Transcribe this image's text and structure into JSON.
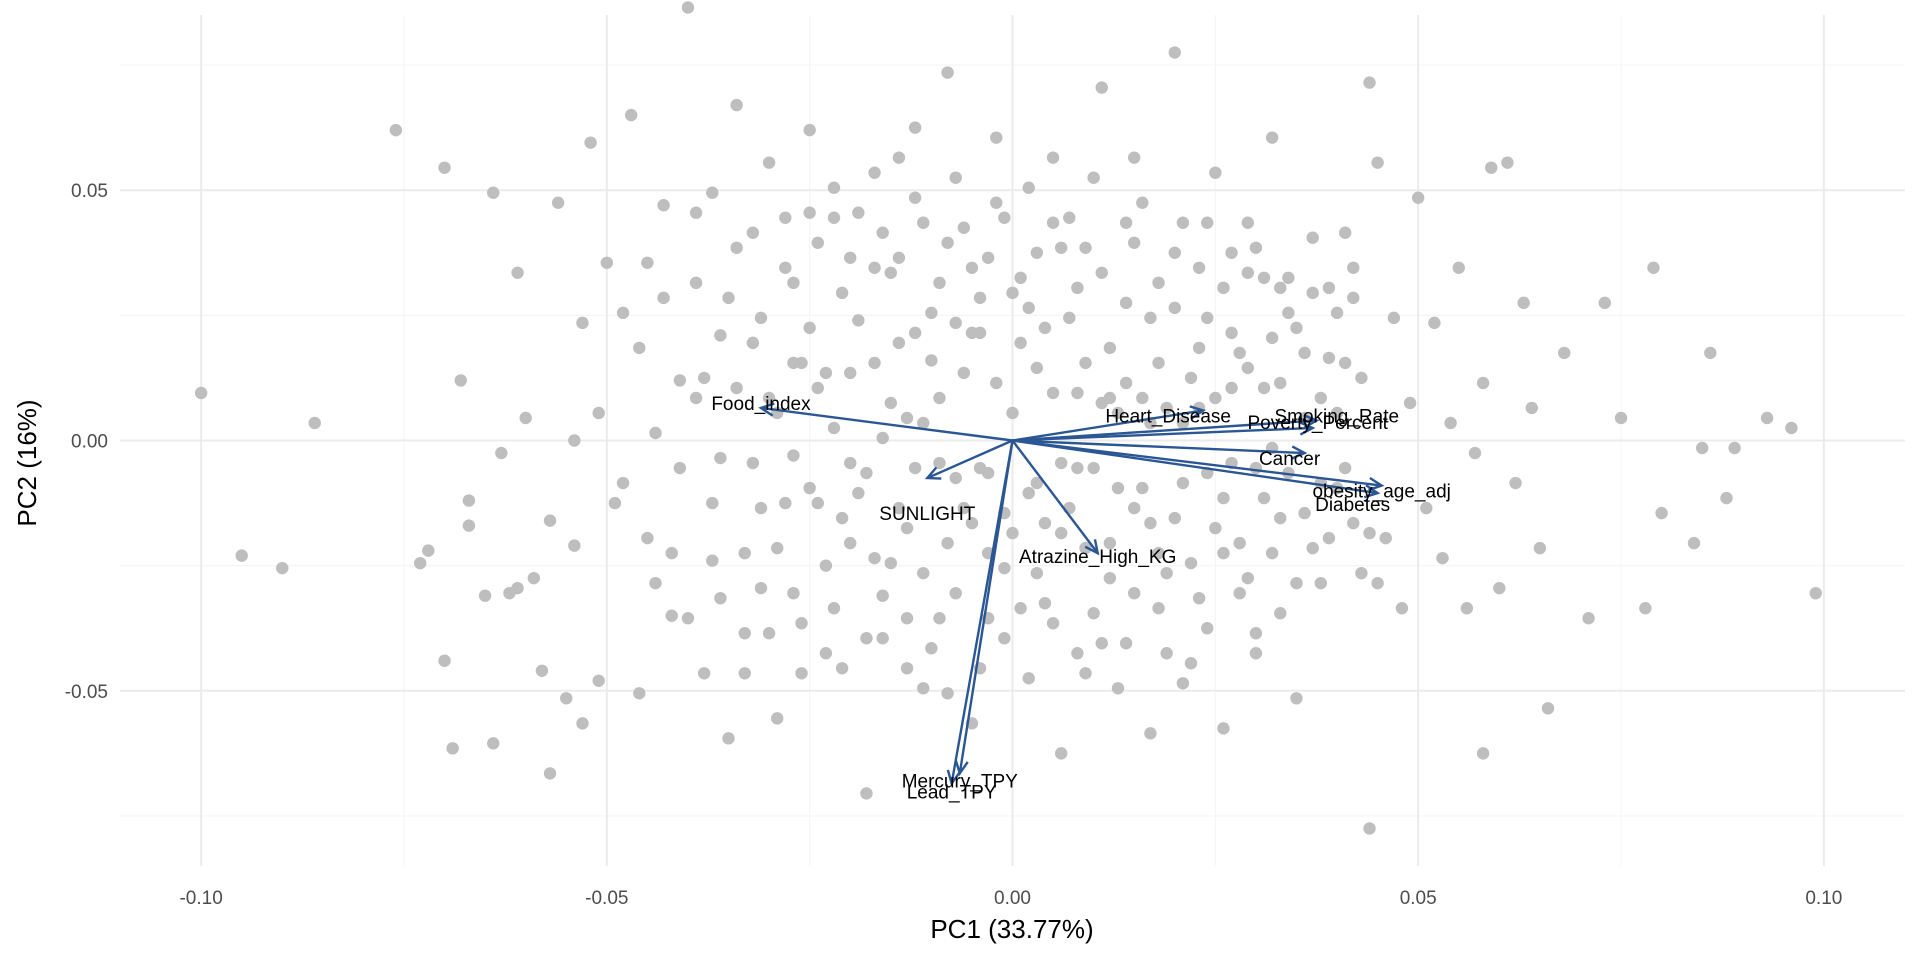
{
  "chart_data": {
    "type": "scatter",
    "subtype": "pca-biplot",
    "xlabel": "PC1 (33.77%)",
    "ylabel": "PC2 (16%)",
    "xlim": [
      -0.11,
      0.11
    ],
    "ylim": [
      -0.085,
      0.085
    ],
    "x_ticks": [
      -0.1,
      -0.05,
      0.0,
      0.05,
      0.1
    ],
    "x_tick_labels": [
      "-0.10",
      "-0.05",
      "0.00",
      "0.05",
      "0.10"
    ],
    "y_ticks": [
      -0.05,
      0.0,
      0.05
    ],
    "y_tick_labels": [
      "-0.05",
      "0.00",
      "0.05"
    ],
    "grid": true,
    "legend": "none",
    "colors": {
      "points": "#bebebe",
      "arrows": "#2a5694",
      "grid_major": "#ebebeb",
      "grid_minor": "#f5f5f5"
    },
    "loadings": [
      {
        "name": "Food_index",
        "x": -0.031,
        "y": 0.0065
      },
      {
        "name": "SUNLIGHT",
        "x": -0.0105,
        "y": -0.0075
      },
      {
        "name": "Heart_Disease",
        "x": 0.0235,
        "y": 0.006
      },
      {
        "name": "Smoking_Rate",
        "x": 0.0375,
        "y": 0.004
      },
      {
        "name": "Poverty_Percent",
        "x": 0.037,
        "y": 0.0025
      },
      {
        "name": "Cancer",
        "x": 0.036,
        "y": -0.0025
      },
      {
        "name": "obesity_age_adj",
        "x": 0.0455,
        "y": -0.009
      },
      {
        "name": "Diabetes",
        "x": 0.045,
        "y": -0.0105
      },
      {
        "name": "Atrazine_High_KG",
        "x": 0.0105,
        "y": -0.0225
      },
      {
        "name": "Mercury_TPY",
        "x": -0.0065,
        "y": -0.0665
      },
      {
        "name": "Lead_TPY",
        "x": -0.0075,
        "y": -0.0685
      }
    ],
    "points": [
      [
        -0.1,
        0.0095
      ],
      [
        -0.095,
        -0.023
      ],
      [
        -0.09,
        -0.0255
      ],
      [
        -0.086,
        0.0035
      ],
      [
        -0.076,
        0.062
      ],
      [
        -0.073,
        -0.0245
      ],
      [
        -0.072,
        -0.022
      ],
      [
        -0.07,
        0.0545
      ],
      [
        -0.07,
        -0.044
      ],
      [
        -0.069,
        -0.0615
      ],
      [
        -0.068,
        0.012
      ],
      [
        -0.067,
        -0.012
      ],
      [
        -0.067,
        -0.017
      ],
      [
        -0.065,
        -0.031
      ],
      [
        -0.064,
        -0.0605
      ],
      [
        -0.064,
        0.0495
      ],
      [
        -0.063,
        -0.0025
      ],
      [
        -0.062,
        -0.0305
      ],
      [
        -0.061,
        0.0335
      ],
      [
        -0.061,
        -0.0295
      ],
      [
        -0.06,
        0.0045
      ],
      [
        -0.059,
        -0.0275
      ],
      [
        -0.058,
        -0.046
      ],
      [
        -0.057,
        -0.0665
      ],
      [
        -0.057,
        -0.016
      ],
      [
        -0.056,
        0.0475
      ],
      [
        -0.055,
        -0.0515
      ],
      [
        -0.054,
        0.0
      ],
      [
        -0.054,
        -0.021
      ],
      [
        -0.053,
        -0.0565
      ],
      [
        -0.052,
        0.0595
      ],
      [
        -0.051,
        -0.048
      ],
      [
        -0.051,
        0.0055
      ],
      [
        -0.05,
        0.0355
      ],
      [
        -0.049,
        -0.0125
      ],
      [
        -0.048,
        0.0255
      ],
      [
        -0.047,
        0.065
      ],
      [
        -0.046,
        -0.0505
      ],
      [
        -0.045,
        -0.0195
      ],
      [
        -0.044,
        0.0015
      ],
      [
        -0.043,
        0.047
      ],
      [
        -0.042,
        -0.035
      ],
      [
        -0.041,
        0.012
      ],
      [
        -0.04,
        0.0865
      ],
      [
        -0.039,
        0.0315
      ],
      [
        -0.038,
        -0.0465
      ],
      [
        -0.037,
        -0.024
      ],
      [
        -0.037,
        0.0495
      ],
      [
        -0.036,
        0.021
      ],
      [
        -0.035,
        -0.0595
      ],
      [
        -0.034,
        0.067
      ],
      [
        -0.033,
        -0.0385
      ],
      [
        -0.032,
        0.0195
      ],
      [
        -0.031,
        -0.0135
      ],
      [
        -0.03,
        0.0555
      ],
      [
        -0.029,
        -0.0555
      ],
      [
        -0.028,
        0.0345
      ],
      [
        -0.027,
        -0.003
      ],
      [
        -0.026,
        -0.0365
      ],
      [
        -0.025,
        0.062
      ],
      [
        -0.024,
        0.0105
      ],
      [
        -0.023,
        -0.025
      ],
      [
        -0.022,
        0.0445
      ],
      [
        -0.021,
        -0.0455
      ],
      [
        -0.02,
        -0.0045
      ],
      [
        -0.019,
        0.024
      ],
      [
        -0.018,
        -0.0705
      ],
      [
        -0.017,
        0.0535
      ],
      [
        -0.016,
        -0.031
      ],
      [
        -0.015,
        0.0075
      ],
      [
        -0.014,
        0.0365
      ],
      [
        -0.013,
        -0.0175
      ],
      [
        -0.012,
        0.0625
      ],
      [
        -0.011,
        -0.0495
      ],
      [
        -0.01,
        0.016
      ],
      [
        -0.009,
        -0.0355
      ],
      [
        -0.008,
        0.0735
      ],
      [
        -0.007,
        -0.0075
      ],
      [
        -0.006,
        0.0425
      ],
      [
        -0.005,
        -0.0565
      ],
      [
        -0.004,
        0.0215
      ],
      [
        -0.003,
        -0.0225
      ],
      [
        -0.002,
        0.0605
      ],
      [
        -0.001,
        -0.0395
      ],
      [
        0.0,
        0.0055
      ],
      [
        0.001,
        0.0325
      ],
      [
        0.002,
        -0.0475
      ],
      [
        0.003,
        0.0145
      ],
      [
        0.004,
        -0.0165
      ],
      [
        0.005,
        0.0565
      ],
      [
        0.006,
        -0.0625
      ],
      [
        0.007,
        0.0245
      ],
      [
        0.008,
        -0.0055
      ],
      [
        0.009,
        0.0385
      ],
      [
        0.01,
        -0.0345
      ],
      [
        0.011,
        0.0705
      ],
      [
        0.012,
        0.0085
      ],
      [
        0.013,
        -0.0495
      ],
      [
        0.014,
        0.0275
      ],
      [
        0.015,
        -0.0135
      ],
      [
        0.016,
        0.0475
      ],
      [
        0.017,
        -0.0585
      ],
      [
        0.018,
        0.0155
      ],
      [
        0.019,
        -0.0265
      ],
      [
        0.02,
        0.0775
      ],
      [
        0.021,
        0.0035
      ],
      [
        0.022,
        -0.0445
      ],
      [
        0.023,
        0.0345
      ],
      [
        0.024,
        -0.0065
      ],
      [
        0.025,
        0.0535
      ],
      [
        0.026,
        -0.0575
      ],
      [
        0.027,
        0.0215
      ],
      [
        0.028,
        -0.0205
      ],
      [
        0.029,
        0.0435
      ],
      [
        0.03,
        -0.0385
      ],
      [
        0.031,
        0.0105
      ],
      [
        0.032,
        0.0605
      ],
      [
        0.033,
        -0.0155
      ],
      [
        0.034,
        0.0255
      ],
      [
        0.035,
        -0.0515
      ],
      [
        0.036,
        0.0045
      ],
      [
        0.037,
        0.0405
      ],
      [
        0.038,
        -0.0285
      ],
      [
        0.039,
        0.0165
      ],
      [
        0.04,
        -0.0095
      ],
      [
        0.041,
        0.0415
      ],
      [
        0.042,
        0.0285
      ],
      [
        0.043,
        -0.0265
      ],
      [
        0.044,
        0.0715
      ],
      [
        0.044,
        -0.0775
      ],
      [
        0.045,
        0.0555
      ],
      [
        0.046,
        -0.0195
      ],
      [
        0.047,
        0.0245
      ],
      [
        0.048,
        -0.0335
      ],
      [
        0.049,
        0.0075
      ],
      [
        0.05,
        0.0485
      ],
      [
        0.051,
        -0.0135
      ],
      [
        0.052,
        0.0235
      ],
      [
        0.053,
        -0.0235
      ],
      [
        0.054,
        0.0035
      ],
      [
        0.055,
        0.0345
      ],
      [
        0.056,
        -0.0335
      ],
      [
        0.057,
        -0.0025
      ],
      [
        0.058,
        0.0115
      ],
      [
        0.058,
        -0.0625
      ],
      [
        0.059,
        0.0545
      ],
      [
        0.06,
        -0.0295
      ],
      [
        0.061,
        0.0555
      ],
      [
        0.062,
        -0.0085
      ],
      [
        0.063,
        0.0275
      ],
      [
        0.064,
        0.0065
      ],
      [
        0.065,
        -0.0215
      ],
      [
        0.066,
        -0.0535
      ],
      [
        0.068,
        0.0175
      ],
      [
        0.071,
        -0.0355
      ],
      [
        0.073,
        0.0275
      ],
      [
        0.075,
        0.0045
      ],
      [
        0.078,
        -0.0335
      ],
      [
        0.079,
        0.0345
      ],
      [
        0.08,
        -0.0145
      ],
      [
        0.084,
        -0.0205
      ],
      [
        0.085,
        -0.0015
      ],
      [
        0.086,
        0.0175
      ],
      [
        0.088,
        -0.0115
      ],
      [
        0.089,
        -0.0015
      ],
      [
        0.093,
        0.0045
      ],
      [
        0.096,
        0.0025
      ],
      [
        0.099,
        -0.0305
      ],
      [
        -0.038,
        0.0125
      ],
      [
        -0.036,
        -0.0035
      ],
      [
        -0.034,
        0.0385
      ],
      [
        -0.033,
        -0.0225
      ],
      [
        -0.031,
        0.0245
      ],
      [
        -0.03,
        -0.0385
      ],
      [
        -0.029,
        0.0055
      ],
      [
        -0.028,
        0.0445
      ],
      [
        -0.027,
        -0.0305
      ],
      [
        -0.026,
        0.0155
      ],
      [
        -0.025,
        -0.0095
      ],
      [
        -0.024,
        0.0395
      ],
      [
        -0.023,
        -0.0425
      ],
      [
        -0.022,
        0.0025
      ],
      [
        -0.021,
        0.0295
      ],
      [
        -0.02,
        -0.0205
      ],
      [
        -0.019,
        0.0455
      ],
      [
        -0.018,
        -0.0065
      ],
      [
        -0.017,
        0.0155
      ],
      [
        -0.016,
        -0.0395
      ],
      [
        -0.015,
        0.0335
      ],
      [
        -0.014,
        -0.0135
      ],
      [
        -0.013,
        0.0045
      ],
      [
        -0.012,
        0.0485
      ],
      [
        -0.011,
        -0.0265
      ],
      [
        -0.01,
        0.0255
      ],
      [
        -0.009,
        -0.0045
      ],
      [
        -0.008,
        0.0395
      ],
      [
        -0.007,
        -0.0305
      ],
      [
        -0.006,
        0.0135
      ],
      [
        -0.005,
        -0.0165
      ],
      [
        -0.004,
        0.0285
      ],
      [
        -0.003,
        -0.0065
      ],
      [
        -0.002,
        0.0475
      ],
      [
        -0.001,
        -0.0255
      ],
      [
        0.001,
        0.0195
      ],
      [
        0.002,
        -0.0105
      ],
      [
        0.003,
        0.0375
      ],
      [
        0.004,
        -0.0325
      ],
      [
        0.005,
        0.0095
      ],
      [
        0.006,
        -0.0185
      ],
      [
        0.007,
        0.0445
      ],
      [
        0.008,
        -0.0425
      ],
      [
        0.009,
        0.0155
      ],
      [
        0.01,
        -0.0055
      ],
      [
        0.011,
        0.0335
      ],
      [
        0.012,
        -0.0275
      ],
      [
        0.013,
        0.0055
      ],
      [
        0.014,
        -0.0405
      ],
      [
        0.015,
        0.0395
      ],
      [
        0.016,
        -0.0095
      ],
      [
        0.017,
        0.0245
      ],
      [
        0.018,
        -0.0335
      ],
      [
        0.019,
        0.0065
      ],
      [
        0.02,
        -0.0155
      ],
      [
        0.021,
        0.0435
      ],
      [
        0.022,
        -0.0245
      ],
      [
        0.023,
        0.0185
      ],
      [
        0.024,
        -0.0375
      ],
      [
        0.025,
        0.0085
      ],
      [
        0.026,
        -0.0115
      ],
      [
        0.027,
        0.0375
      ],
      [
        0.028,
        -0.0305
      ],
      [
        0.029,
        0.0145
      ],
      [
        0.03,
        -0.0055
      ],
      [
        0.031,
        0.0325
      ],
      [
        0.032,
        -0.0225
      ],
      [
        0.033,
        0.0115
      ],
      [
        0.034,
        -0.0065
      ],
      [
        0.035,
        0.0225
      ],
      [
        0.036,
        -0.0145
      ],
      [
        0.038,
        0.0085
      ],
      [
        0.039,
        -0.0195
      ],
      [
        0.04,
        0.0255
      ],
      [
        0.041,
        -0.0055
      ],
      [
        0.043,
        0.0125
      ],
      [
        0.044,
        -0.0185
      ],
      [
        -0.046,
        0.0185
      ],
      [
        -0.044,
        -0.0285
      ],
      [
        -0.043,
        0.0285
      ],
      [
        -0.041,
        -0.0055
      ],
      [
        -0.04,
        -0.0355
      ],
      [
        -0.039,
        0.0085
      ],
      [
        -0.037,
        -0.0125
      ],
      [
        -0.035,
        0.0285
      ],
      [
        -0.033,
        -0.0465
      ],
      [
        -0.032,
        0.0415
      ],
      [
        -0.03,
        0.0085
      ],
      [
        -0.029,
        -0.0215
      ],
      [
        -0.027,
        0.0315
      ],
      [
        -0.026,
        -0.0465
      ],
      [
        -0.025,
        0.0225
      ],
      [
        -0.024,
        -0.0125
      ],
      [
        -0.022,
        0.0505
      ],
      [
        -0.021,
        -0.0155
      ],
      [
        -0.02,
        0.0135
      ],
      [
        -0.018,
        -0.0395
      ],
      [
        -0.017,
        0.0345
      ],
      [
        -0.016,
        0.0005
      ],
      [
        -0.015,
        -0.0245
      ],
      [
        -0.014,
        0.0565
      ],
      [
        -0.013,
        -0.0355
      ],
      [
        -0.012,
        0.0215
      ],
      [
        -0.011,
        0.0035
      ],
      [
        -0.01,
        -0.0415
      ],
      [
        -0.009,
        0.0315
      ],
      [
        -0.008,
        -0.0205
      ],
      [
        -0.007,
        0.0525
      ],
      [
        -0.006,
        -0.0135
      ],
      [
        -0.005,
        0.0215
      ],
      [
        -0.004,
        -0.0455
      ],
      [
        -0.003,
        0.0365
      ],
      [
        -0.002,
        0.0115
      ],
      [
        -0.001,
        -0.0145
      ],
      [
        0.0,
        0.0295
      ],
      [
        0.001,
        -0.0335
      ],
      [
        0.002,
        0.0505
      ],
      [
        0.003,
        -0.0085
      ],
      [
        0.004,
        0.0225
      ],
      [
        0.005,
        -0.0365
      ],
      [
        0.006,
        0.0385
      ],
      [
        0.007,
        -0.0135
      ],
      [
        0.008,
        0.0095
      ],
      [
        0.009,
        -0.0215
      ],
      [
        0.01,
        0.0525
      ],
      [
        0.011,
        -0.0405
      ],
      [
        0.012,
        0.0185
      ],
      [
        0.013,
        -0.0095
      ],
      [
        0.014,
        0.0435
      ],
      [
        0.015,
        -0.0305
      ],
      [
        0.016,
        0.0085
      ],
      [
        0.017,
        -0.0165
      ],
      [
        0.018,
        0.0315
      ],
      [
        0.019,
        -0.0425
      ],
      [
        0.02,
        0.0265
      ],
      [
        0.021,
        -0.0085
      ],
      [
        0.022,
        0.0125
      ],
      [
        0.023,
        -0.0315
      ],
      [
        0.024,
        0.0435
      ],
      [
        0.025,
        -0.0175
      ],
      [
        0.026,
        0.0305
      ],
      [
        0.027,
        -0.0045
      ],
      [
        0.028,
        0.0175
      ],
      [
        0.029,
        -0.0275
      ],
      [
        0.03,
        0.0385
      ],
      [
        0.031,
        -0.0115
      ],
      [
        0.032,
        0.0205
      ],
      [
        0.033,
        -0.0345
      ],
      [
        0.034,
        0.0325
      ],
      [
        0.036,
        0.0175
      ],
      [
        0.037,
        -0.0215
      ],
      [
        0.039,
        0.0305
      ],
      [
        0.041,
        0.0155
      ],
      [
        0.042,
        -0.0165
      ],
      [
        -0.053,
        0.0235
      ],
      [
        -0.048,
        -0.0085
      ],
      [
        -0.045,
        0.0355
      ],
      [
        -0.042,
        -0.0225
      ],
      [
        -0.039,
        0.0455
      ],
      [
        -0.036,
        -0.0315
      ],
      [
        -0.034,
        0.0105
      ],
      [
        -0.032,
        -0.0045
      ],
      [
        -0.031,
        -0.0295
      ],
      [
        -0.028,
        -0.0125
      ],
      [
        -0.027,
        0.0155
      ],
      [
        -0.025,
        0.0455
      ],
      [
        -0.023,
        0.0135
      ],
      [
        -0.022,
        -0.0335
      ],
      [
        -0.02,
        0.0365
      ],
      [
        -0.019,
        -0.0105
      ],
      [
        -0.017,
        -0.0235
      ],
      [
        -0.016,
        0.0415
      ],
      [
        -0.014,
        0.0195
      ],
      [
        -0.013,
        -0.0455
      ],
      [
        -0.012,
        -0.0055
      ],
      [
        -0.011,
        0.0435
      ],
      [
        -0.009,
        0.0085
      ],
      [
        -0.008,
        -0.0505
      ],
      [
        -0.007,
        0.0235
      ],
      [
        -0.005,
        0.0345
      ],
      [
        -0.004,
        -0.0055
      ],
      [
        -0.003,
        -0.0355
      ],
      [
        -0.001,
        0.0445
      ],
      [
        0.0,
        -0.0185
      ],
      [
        0.002,
        0.0265
      ],
      [
        0.003,
        -0.0265
      ],
      [
        0.005,
        0.0435
      ],
      [
        0.006,
        -0.0045
      ],
      [
        0.008,
        0.0305
      ],
      [
        0.009,
        -0.0465
      ],
      [
        0.011,
        0.0075
      ],
      [
        0.012,
        -0.0205
      ],
      [
        0.014,
        0.0115
      ],
      [
        0.015,
        0.0565
      ],
      [
        0.017,
        0.0035
      ],
      [
        0.018,
        -0.0225
      ],
      [
        0.02,
        0.0375
      ],
      [
        0.021,
        -0.0485
      ],
      [
        0.023,
        0.0065
      ],
      [
        0.024,
        0.0245
      ],
      [
        0.026,
        -0.0225
      ],
      [
        0.027,
        0.0105
      ],
      [
        0.029,
        0.0335
      ],
      [
        0.03,
        -0.0425
      ],
      [
        0.032,
        -0.0015
      ],
      [
        0.033,
        0.0305
      ],
      [
        0.035,
        -0.0285
      ],
      [
        0.037,
        0.0295
      ],
      [
        0.038,
        -0.0085
      ],
      [
        0.04,
        0.0055
      ],
      [
        0.042,
        0.0345
      ],
      [
        0.045,
        -0.0285
      ]
    ]
  }
}
